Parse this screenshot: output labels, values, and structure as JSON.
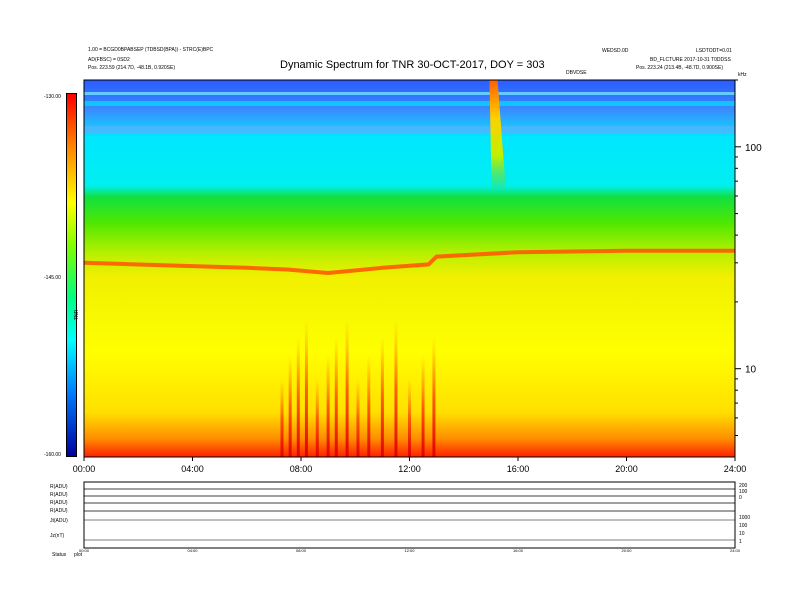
{
  "header": {
    "title": "Dynamic Spectrum for TNR 30-OCT-2017, DOY = 303",
    "top_left_line1": "1.00 = BCGD0BPABSEP (TDBSD(BPA)) - STRC(E)BPC",
    "top_left_line2": "AD(FBSC) = 0SD2",
    "top_left_pos": "Pos.  223.59 (214.7D, -48.1B, 0.920SE)",
    "top_right_a": "WEDSD.0D",
    "top_right_b": "LSDTODT=0.01",
    "top_right_c": "BD_FLCTURE 2017-10-31 T0DDSS",
    "top_right_pos": "Pos.  223.24 (213.4B, -48.7D, 0.900SE)",
    "center_small_label": "DBVDSE",
    "right_unit": "kHz"
  },
  "colorbar": {
    "ticks": [
      "-130.00",
      "-145.00",
      "-160.00"
    ],
    "label": "TNR"
  },
  "chart_data": [
    {
      "type": "heatmap",
      "title": "Dynamic Spectrum for TNR 30-OCT-2017, DOY = 303",
      "x_ticks": [
        "00:00",
        "04:00",
        "08:00",
        "12:00",
        "16:00",
        "20:00",
        "24:00"
      ],
      "x_range_hours": [
        0,
        24
      ],
      "y_scale": "log",
      "y_ticks": [
        "100",
        "10"
      ],
      "y_range_khz": [
        4,
        200
      ],
      "color_range": [
        -160,
        -130
      ],
      "colormap": "rainbow (blue high, red low)",
      "background_level_db": [
        {
          "freq_khz": 5,
          "db": -158
        },
        {
          "freq_khz": 10,
          "db": -154
        },
        {
          "freq_khz": 20,
          "db": -150
        },
        {
          "freq_khz": 30,
          "db": -146
        },
        {
          "freq_khz": 50,
          "db": -143
        },
        {
          "freq_khz": 80,
          "db": -139
        },
        {
          "freq_khz": 120,
          "db": -136
        },
        {
          "freq_khz": 170,
          "db": -133
        }
      ],
      "ridge_freq_khz": [
        {
          "hour": 0,
          "khz": 30.0
        },
        {
          "hour": 4,
          "khz": 29.0
        },
        {
          "hour": 6,
          "khz": 28.5
        },
        {
          "hour": 7.5,
          "khz": 28.0
        },
        {
          "hour": 9,
          "khz": 27.0
        },
        {
          "hour": 11,
          "khz": 28.5
        },
        {
          "hour": 12.7,
          "khz": 29.5
        },
        {
          "hour": 13,
          "khz": 32.0
        },
        {
          "hour": 16,
          "khz": 33.5
        },
        {
          "hour": 20,
          "khz": 34.0
        },
        {
          "hour": 24,
          "khz": 34.0
        }
      ],
      "burst": {
        "start_hour": 14.95,
        "end_hour": 15.55,
        "freq_top_khz": 200,
        "freq_bottom_khz": 65
      },
      "spikes_hours": [
        7.3,
        7.6,
        7.9,
        8.2,
        8.6,
        9.0,
        9.3,
        9.7,
        10.1,
        10.5,
        11.0,
        11.5,
        12.0,
        12.5,
        12.9
      ]
    },
    {
      "type": "line",
      "x_ticks": [
        "00:00",
        "04:00",
        "08:00",
        "12:00",
        "16:00",
        "20:00",
        "24:00"
      ],
      "channels": [
        "R(ADU)",
        "R(ADU)",
        "R(ADU)",
        "R(ADU)",
        "Jt(ADU)",
        "Jz(nT)"
      ],
      "right_scale_top": [
        "200",
        "100",
        "0"
      ],
      "right_scale_bottom": [
        "1000",
        "100",
        "10",
        "1"
      ],
      "footer_label_left": "Status",
      "footer_label_right": "plot"
    }
  ]
}
